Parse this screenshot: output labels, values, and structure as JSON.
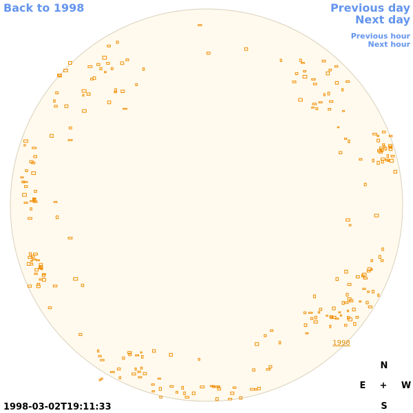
{
  "nav": {
    "back": "Back to 1998",
    "previous_day": "Previous day",
    "next_day": "Next day",
    "previous_hour": "Previous hour",
    "next_hour": "Next hour"
  },
  "disk": {
    "label": "1998"
  },
  "compass": {
    "north": "N",
    "east": "E",
    "center": "+",
    "west": "W",
    "south": "S"
  },
  "timestamp": "1998-03-02T19:11:33"
}
